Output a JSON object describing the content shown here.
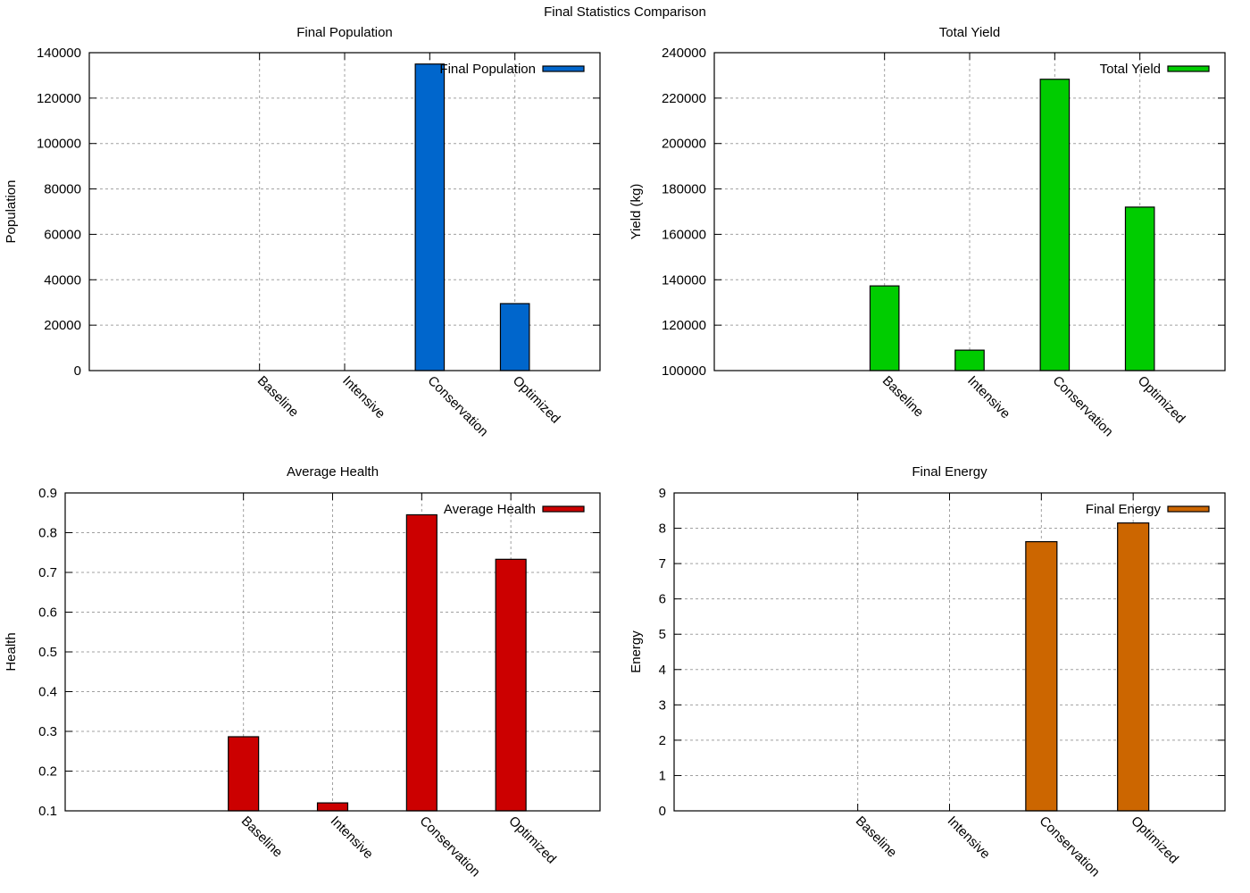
{
  "figure": {
    "title": "Final Statistics Comparison"
  },
  "chart_data": [
    {
      "id": "final-population",
      "type": "bar",
      "title": "Final Population",
      "xlabel": "",
      "ylabel": "Population",
      "categories": [
        "Baseline",
        "Intensive",
        "Conservation",
        "Optimized"
      ],
      "values": [
        0,
        0,
        135000,
        29500
      ],
      "ylim": [
        0,
        140000
      ],
      "yticks": [
        0,
        20000,
        40000,
        60000,
        80000,
        100000,
        120000,
        140000
      ],
      "ytick_labels": [
        "0",
        "20000",
        "40000",
        "60000",
        "80000",
        "100000",
        "120000",
        "140000"
      ],
      "xlim": [
        -2,
        4
      ],
      "grid": true,
      "legend": {
        "label": "Final Population",
        "placement": "top-right"
      },
      "color": "#0066cc"
    },
    {
      "id": "total-yield",
      "type": "bar",
      "title": "Total Yield",
      "xlabel": "",
      "ylabel": "Yield (kg)",
      "categories": [
        "Baseline",
        "Intensive",
        "Conservation",
        "Optimized"
      ],
      "values": [
        137300,
        109000,
        228300,
        172000
      ],
      "ylim": [
        100000,
        240000
      ],
      "yticks": [
        100000,
        120000,
        140000,
        160000,
        180000,
        200000,
        220000,
        240000
      ],
      "ytick_labels": [
        "100000",
        "120000",
        "140000",
        "160000",
        "180000",
        "200000",
        "220000",
        "240000"
      ],
      "xlim": [
        -2,
        4
      ],
      "grid": true,
      "legend": {
        "label": "Total Yield",
        "placement": "top-right"
      },
      "color": "#00cc00"
    },
    {
      "id": "average-health",
      "type": "bar",
      "title": "Average Health",
      "xlabel": "",
      "ylabel": "Health",
      "categories": [
        "Baseline",
        "Intensive",
        "Conservation",
        "Optimized"
      ],
      "values": [
        0.2865,
        0.12,
        0.845,
        0.733
      ],
      "ylim": [
        0.1,
        0.9
      ],
      "yticks": [
        0.1,
        0.2,
        0.3,
        0.4,
        0.5,
        0.6,
        0.7,
        0.8,
        0.9
      ],
      "ytick_labels": [
        "0.1",
        "0.2",
        "0.3",
        "0.4",
        "0.5",
        "0.6",
        "0.7",
        "0.8",
        "0.9"
      ],
      "xlim": [
        -2,
        4
      ],
      "grid": true,
      "legend": {
        "label": "Average Health",
        "placement": "top-right"
      },
      "color": "#cc0000"
    },
    {
      "id": "final-energy",
      "type": "bar",
      "title": "Final Energy",
      "xlabel": "",
      "ylabel": "Energy",
      "categories": [
        "Baseline",
        "Intensive",
        "Conservation",
        "Optimized"
      ],
      "values": [
        0,
        0,
        7.62,
        8.15
      ],
      "ylim": [
        0,
        9
      ],
      "yticks": [
        0,
        1,
        2,
        3,
        4,
        5,
        6,
        7,
        8,
        9
      ],
      "ytick_labels": [
        "0",
        "1",
        "2",
        "3",
        "4",
        "5",
        "6",
        "7",
        "8",
        "9"
      ],
      "xlim": [
        -2,
        4
      ],
      "grid": true,
      "legend": {
        "label": "Final Energy",
        "placement": "top-right"
      },
      "color": "#cc6600"
    }
  ]
}
